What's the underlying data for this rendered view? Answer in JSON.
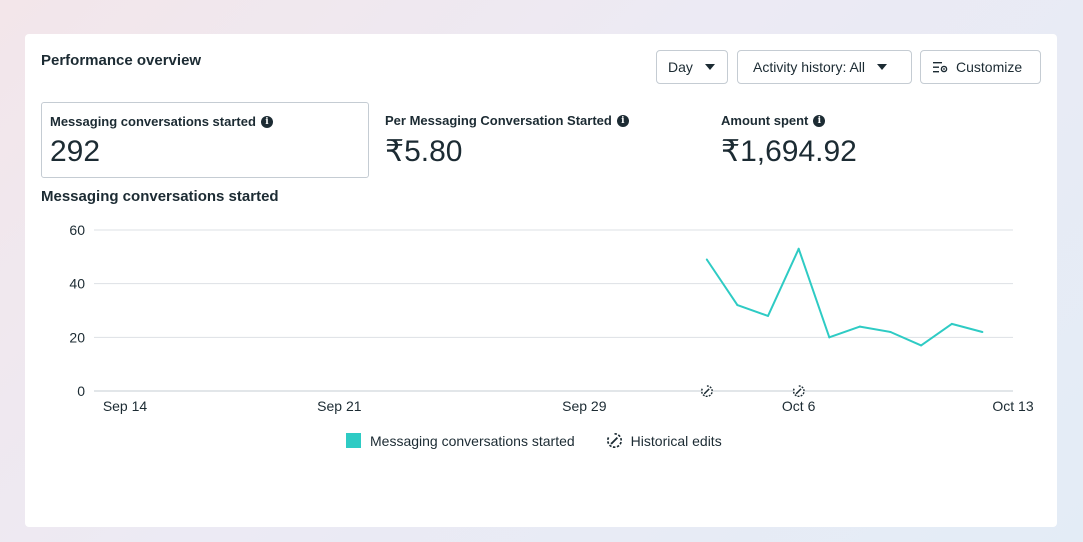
{
  "panel": {
    "title": "Performance overview",
    "buttons": {
      "day": "Day",
      "activity": "Activity history: All",
      "customize": "Customize"
    }
  },
  "metrics": [
    {
      "label": "Messaging conversations started",
      "value": "292"
    },
    {
      "label": "Per Messaging Conversation Started",
      "value": "₹5.80"
    },
    {
      "label": "Amount spent",
      "value": "₹1,694.92"
    }
  ],
  "chart_title": "Messaging conversations started",
  "legend": {
    "series_label": "Messaging conversations started",
    "edits_label": "Historical edits"
  },
  "colors": {
    "series": "#2ecbc4",
    "grid": "#dde1e5",
    "text": "#1c2b33"
  },
  "chart_data": {
    "type": "line",
    "title": "Messaging conversations started",
    "xlabel": "",
    "ylabel": "",
    "ylim": [
      0,
      60
    ],
    "yticks": [
      0,
      20,
      40,
      60
    ],
    "x_tick_labels": [
      {
        "date": "Sep 14",
        "label": "Sep 14"
      },
      {
        "date": "Sep 21",
        "label": "Sep 21"
      },
      {
        "date": "Sep 29",
        "label": "Sep 29"
      },
      {
        "date": "Oct 6",
        "label": "Oct 6"
      },
      {
        "date": "Oct 13",
        "label": "Oct 13"
      }
    ],
    "series": [
      {
        "name": "Messaging conversations started",
        "x": [
          "Oct 3",
          "Oct 4",
          "Oct 5",
          "Oct 6",
          "Oct 7",
          "Oct 8",
          "Oct 9",
          "Oct 10",
          "Oct 11",
          "Oct 12"
        ],
        "values": [
          49,
          32,
          28,
          53,
          20,
          24,
          22,
          17,
          25,
          22
        ]
      }
    ],
    "historical_edits": [
      "Oct 3",
      "Oct 6"
    ],
    "grid": true,
    "legend_position": "bottom"
  }
}
